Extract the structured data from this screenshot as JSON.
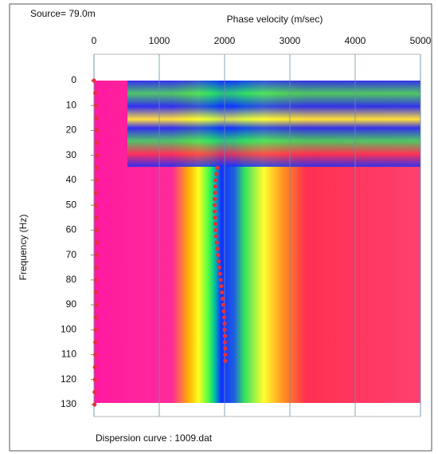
{
  "chart_data": {
    "type": "scatter",
    "title": "Source= 79.0m",
    "x_label": "Phase velocity (m/sec)",
    "y_label": "Frequency (Hz)",
    "footer": "Dispersion curve : 1009.dat",
    "xlim": [
      0,
      5000
    ],
    "xticks": [
      0,
      1000,
      2000,
      3000,
      4000,
      5000
    ],
    "ylim": [
      0,
      130
    ],
    "yticks": [
      0,
      10,
      20,
      30,
      40,
      50,
      60,
      70,
      80,
      90,
      100,
      110,
      120,
      130
    ],
    "y_inverted": true,
    "x_axis_position": "top",
    "grid": true,
    "series": [
      {
        "color": "#e8303a",
        "x": [
          1890,
          1875,
          1865,
          1860,
          1855,
          1850,
          1850,
          1850,
          1855,
          1860,
          1865,
          1870,
          1880,
          1890,
          1900,
          1910,
          1920,
          1930,
          1940,
          1950,
          1960,
          1970,
          1980,
          1990,
          1995,
          2000,
          2000,
          2005,
          2005,
          2010,
          2010,
          2010
        ],
        "values": [
          35,
          37.5,
          40,
          42.5,
          45,
          47.5,
          50,
          52.5,
          55,
          57.5,
          60,
          62.5,
          65,
          67.5,
          70,
          72.5,
          75,
          77.5,
          80,
          82.5,
          85,
          87.5,
          90,
          92.5,
          95,
          97.5,
          100,
          102.5,
          105,
          107.5,
          110,
          112.5
        ]
      },
      {
        "color": "#e8303a",
        "x": [
          0,
          20,
          30,
          35,
          40,
          40,
          45,
          40,
          35,
          30,
          30,
          35,
          40,
          45,
          40,
          35,
          30,
          30,
          35,
          30,
          25,
          20,
          20,
          15,
          15,
          10,
          10
        ],
        "values": [
          0,
          5,
          10,
          15,
          20,
          25,
          30,
          35,
          40,
          45,
          50,
          55,
          60,
          65,
          70,
          75,
          80,
          85,
          90,
          95,
          100,
          105,
          110,
          115,
          120,
          125,
          130
        ]
      }
    ]
  }
}
